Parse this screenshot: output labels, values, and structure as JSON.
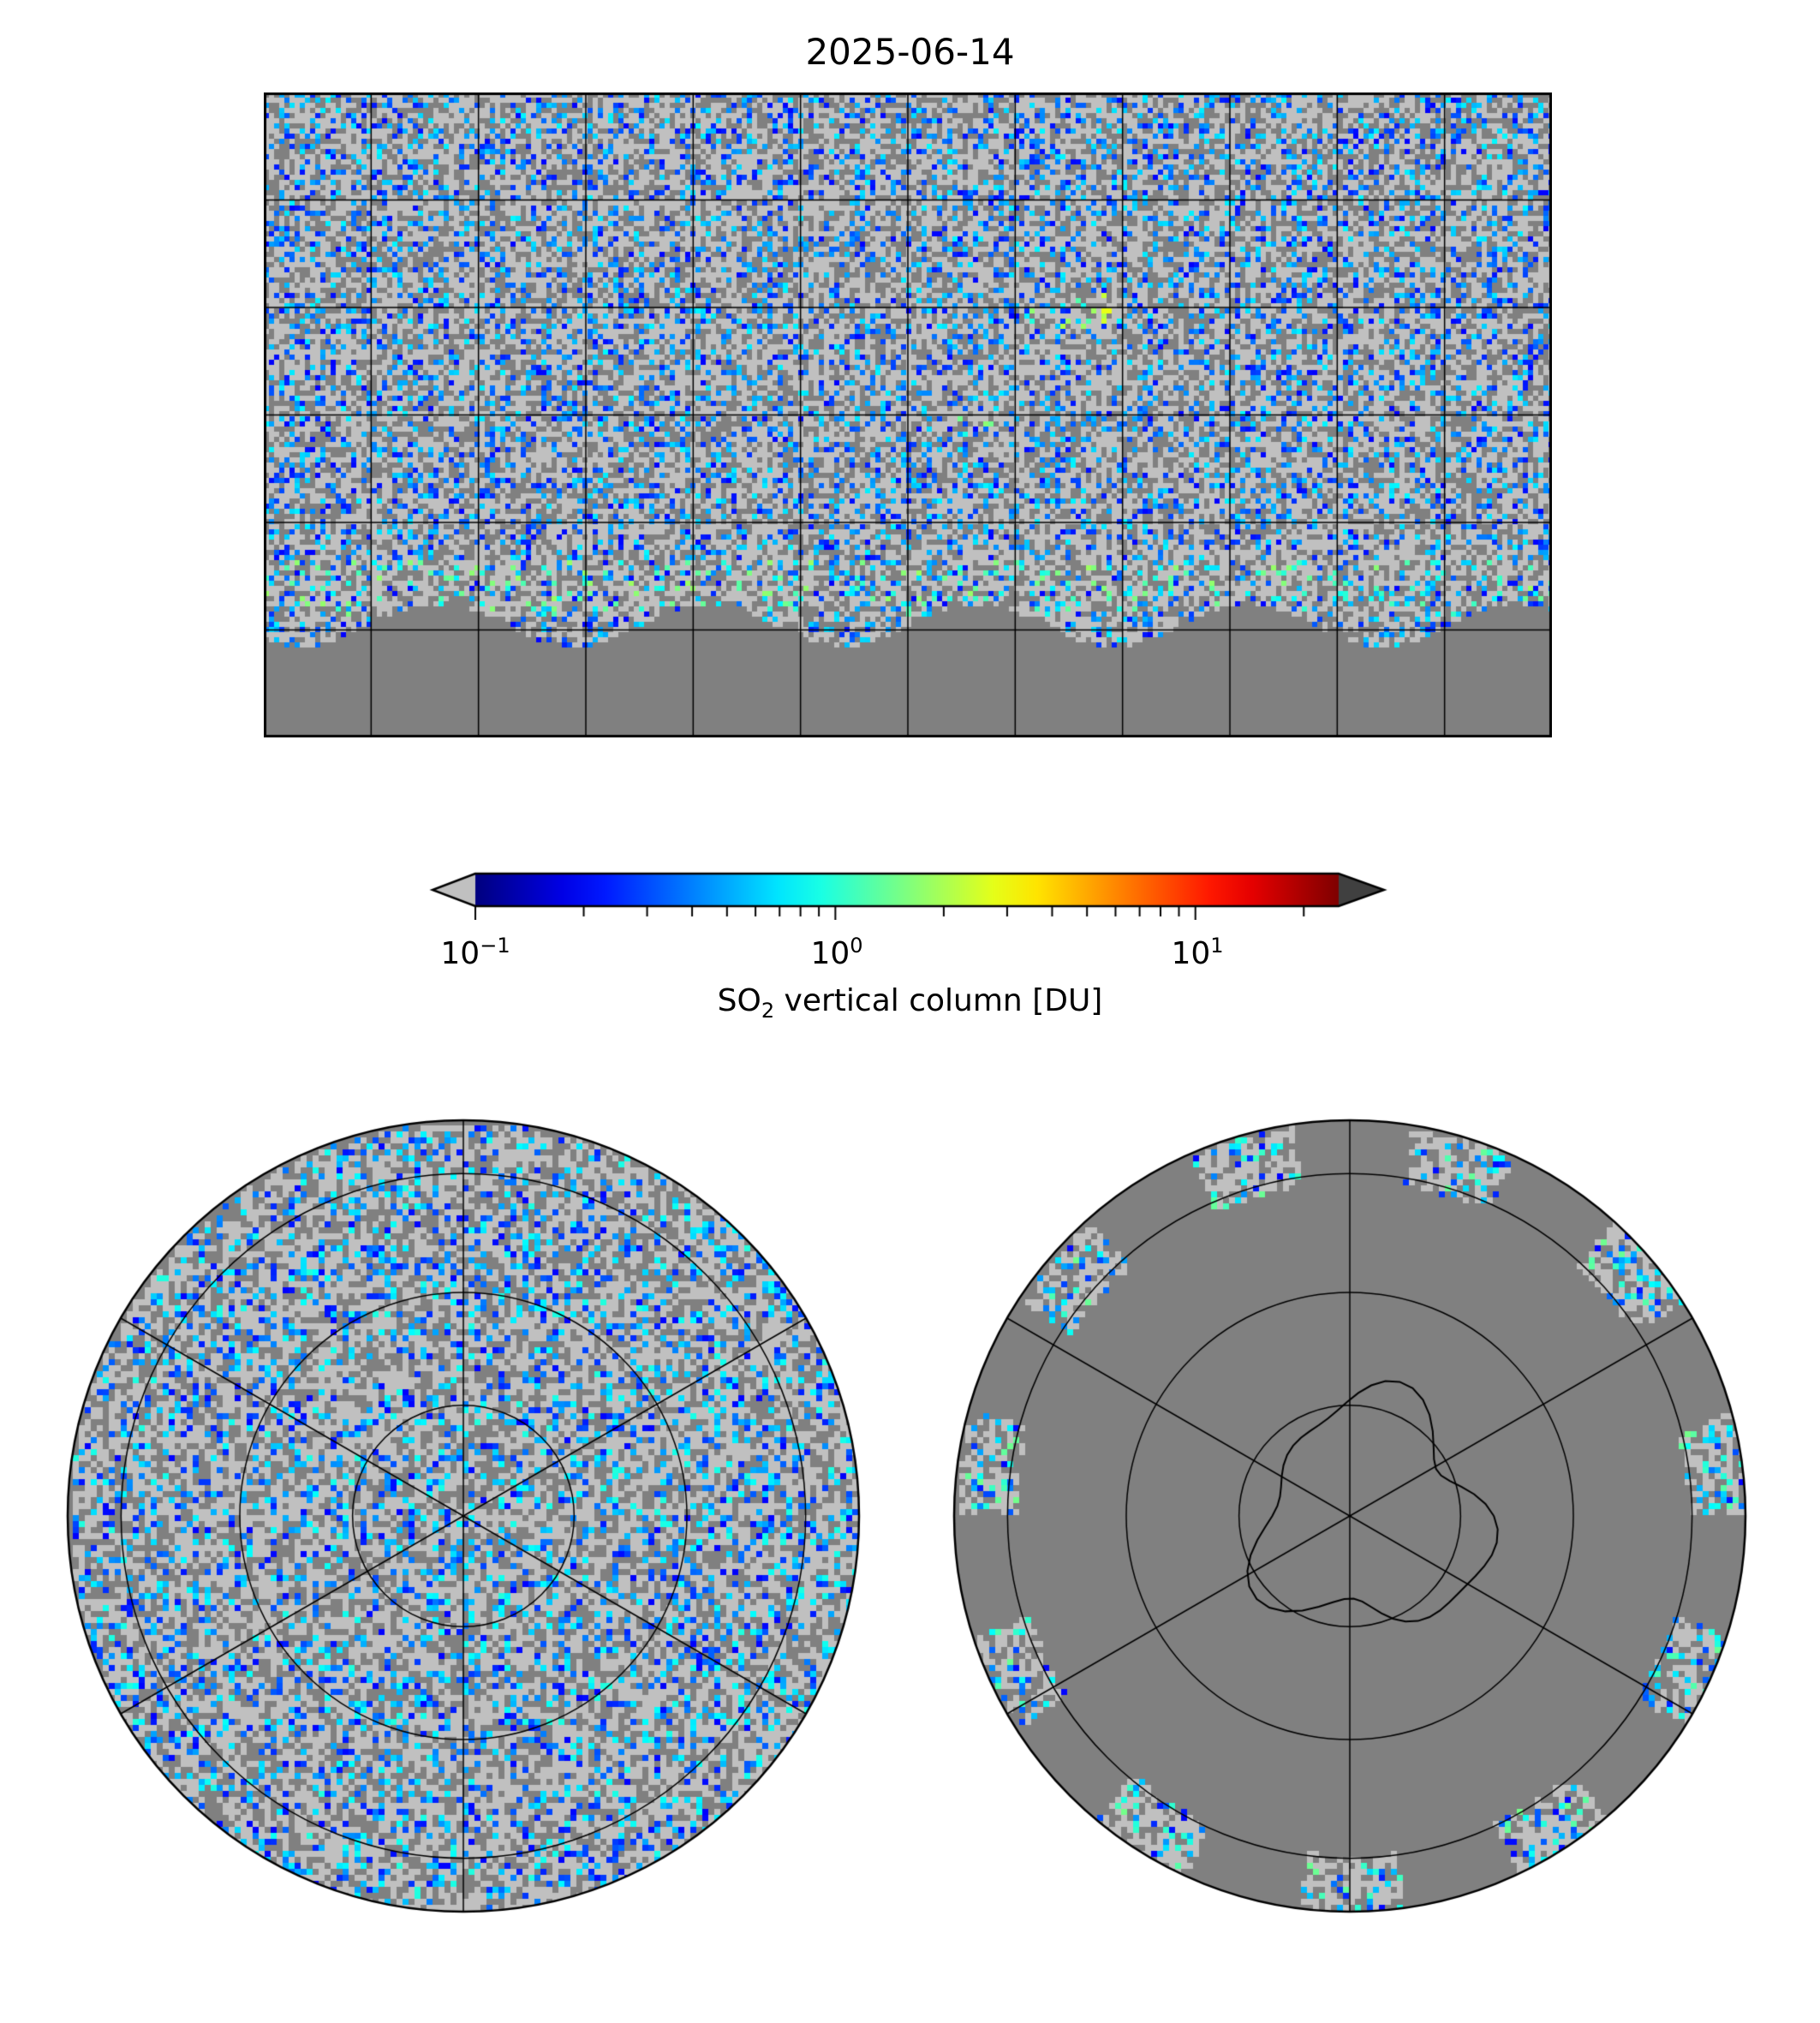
{
  "title": "2025-06-14",
  "chart_data": [
    {
      "type": "heatmap",
      "name": "global map (plate carree)",
      "title": "2025-06-14",
      "projection": "PlateCarree",
      "lon_range": [
        -180,
        180
      ],
      "lat_range": [
        -90,
        90
      ],
      "gridlines_lon_step": 30,
      "gridlines_lat_step": 30
    },
    {
      "type": "heatmap",
      "name": "north polar stereographic",
      "projection": "NorthPolarStereo"
    },
    {
      "type": "heatmap",
      "name": "south polar stereographic",
      "projection": "SouthPolarStereo"
    }
  ],
  "colorbar": {
    "label_prefix": "SO",
    "label_sub": "2",
    "label_suffix": " vertical column [DU]",
    "scale": "log",
    "range": [
      0.1,
      25
    ],
    "ticks": [
      {
        "base": "10",
        "exp": "−1",
        "value": 0.1
      },
      {
        "base": "10",
        "exp": "0",
        "value": 1
      },
      {
        "base": "10",
        "exp": "1",
        "value": 10
      }
    ],
    "extend_under_color": "#c0c0c0",
    "extend_over_color": "#404040",
    "colormap": "jet"
  },
  "colors": {
    "missing": "#808080",
    "below": "#c0c0c0",
    "grid": "#000000"
  }
}
